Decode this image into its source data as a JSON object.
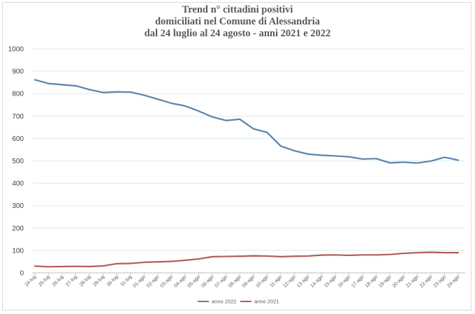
{
  "chart_data": {
    "type": "line",
    "title_lines": [
      "Trend n° cittadini positivi",
      "domiciliati nel Comune di Alessandria",
      "dal 24 luglio al 24 agosto - anni 2021 e 2022"
    ],
    "xlabel": "",
    "ylabel": "",
    "ylim": [
      0,
      1000
    ],
    "yticks": [
      "0",
      "100",
      "200",
      "300",
      "400",
      "500",
      "600",
      "700",
      "800",
      "900",
      "1000"
    ],
    "grid": true,
    "legend_position": "bottom",
    "categories": [
      "24-lug",
      "25-lug",
      "26-lug",
      "27-lug",
      "28-lug",
      "29-lug",
      "30-lug",
      "31-lug",
      "01-ago",
      "02-ago",
      "03-ago",
      "04-ago",
      "05-ago",
      "06-ago",
      "07-ago",
      "08-ago",
      "09-ago",
      "10-ago",
      "11-ago",
      "12-ago",
      "13-ago",
      "14-ago",
      "15-ago",
      "16-ago",
      "17-ago",
      "18-ago",
      "19-ago",
      "20-ago",
      "21-ago",
      "22-ago",
      "23-ago",
      "24-ago"
    ],
    "series": [
      {
        "name": "anno 2022",
        "color": "#5b82ab",
        "values": [
          862,
          845,
          840,
          835,
          818,
          805,
          808,
          807,
          793,
          775,
          757,
          745,
          722,
          696,
          680,
          686,
          643,
          627,
          566,
          545,
          530,
          525,
          522,
          518,
          508,
          510,
          491,
          494,
          490,
          499,
          516,
          503
        ]
      },
      {
        "name": "anno 2021",
        "color": "#b35b5b",
        "values": [
          30,
          27,
          28,
          29,
          28,
          31,
          41,
          42,
          47,
          49,
          51,
          56,
          62,
          72,
          73,
          74,
          76,
          75,
          72,
          74,
          75,
          79,
          80,
          78,
          80,
          80,
          82,
          87,
          90,
          92,
          90,
          90
        ]
      }
    ]
  }
}
